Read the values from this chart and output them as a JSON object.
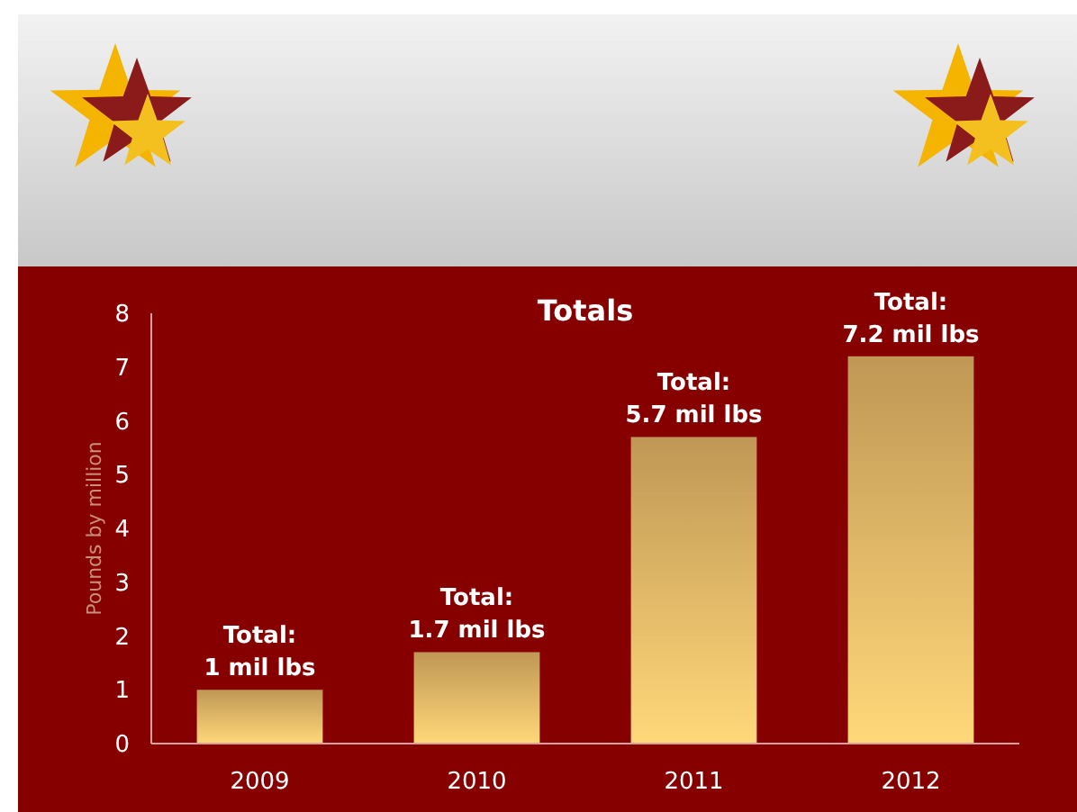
{
  "chart_data": {
    "type": "bar",
    "title": "Totals",
    "ylabel": "Pounds by million",
    "categories": [
      "2009",
      "2010",
      "2011",
      "2012"
    ],
    "values": [
      1,
      1.7,
      5.7,
      7.2
    ],
    "value_labels": [
      "Total:\n1 mil lbs",
      "Total:\n1.7 mil lbs",
      "Total:\n5.7 mil lbs",
      "Total:\n7.2 mil lbs"
    ],
    "color": "#e6b566",
    "ylim": [
      0,
      8
    ],
    "yticks": [
      0,
      1,
      2,
      3,
      4,
      5,
      6,
      7,
      8
    ],
    "grid": false
  }
}
